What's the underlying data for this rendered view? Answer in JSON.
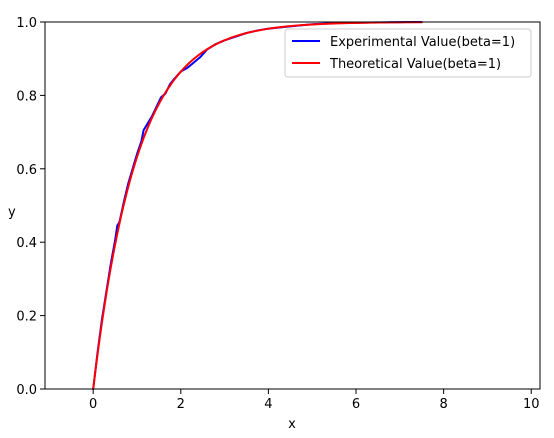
{
  "chart_data": {
    "type": "line",
    "title": "",
    "xlabel": "x",
    "ylabel": "y",
    "xlim": [
      -1.1,
      10.2
    ],
    "ylim": [
      0.0,
      1.0
    ],
    "xticks": [
      0,
      2,
      4,
      6,
      8,
      10
    ],
    "yticks": [
      0.0,
      0.2,
      0.4,
      0.6,
      0.8,
      1.0
    ],
    "xtick_labels": [
      "0",
      "2",
      "4",
      "6",
      "8",
      "10"
    ],
    "ytick_labels": [
      "0.0",
      "0.2",
      "0.4",
      "0.6",
      "0.8",
      "1.0"
    ],
    "grid": false,
    "legend_position": "top-right",
    "series": [
      {
        "name": "Experimental Value(beta=1)",
        "color": "#0000ff",
        "points": [
          [
            0.0,
            0.0
          ],
          [
            0.1,
            0.1
          ],
          [
            0.2,
            0.19
          ],
          [
            0.3,
            0.265
          ],
          [
            0.4,
            0.34
          ],
          [
            0.5,
            0.405
          ],
          [
            0.55,
            0.445
          ],
          [
            0.6,
            0.455
          ],
          [
            0.7,
            0.51
          ],
          [
            0.8,
            0.56
          ],
          [
            0.9,
            0.6
          ],
          [
            1.0,
            0.64
          ],
          [
            1.1,
            0.675
          ],
          [
            1.15,
            0.705
          ],
          [
            1.25,
            0.725
          ],
          [
            1.35,
            0.745
          ],
          [
            1.45,
            0.77
          ],
          [
            1.55,
            0.795
          ],
          [
            1.65,
            0.805
          ],
          [
            1.75,
            0.83
          ],
          [
            1.85,
            0.845
          ],
          [
            2.0,
            0.865
          ],
          [
            2.15,
            0.875
          ],
          [
            2.3,
            0.89
          ],
          [
            2.45,
            0.905
          ],
          [
            2.6,
            0.925
          ],
          [
            2.8,
            0.94
          ],
          [
            3.0,
            0.95
          ],
          [
            3.25,
            0.96
          ],
          [
            3.5,
            0.97
          ],
          [
            3.75,
            0.977
          ],
          [
            4.0,
            0.982
          ],
          [
            4.5,
            0.988
          ],
          [
            5.0,
            0.994
          ],
          [
            5.5,
            0.997
          ],
          [
            6.0,
            0.998
          ],
          [
            6.5,
            0.999
          ],
          [
            7.0,
            0.9995
          ],
          [
            7.5,
            1.0
          ]
        ]
      },
      {
        "name": "Theoretical Value(beta=1)",
        "color": "#ff0000",
        "function": "1 - exp(-x)",
        "x_start": 0.0,
        "x_end": 7.5,
        "samples": 151
      }
    ]
  }
}
